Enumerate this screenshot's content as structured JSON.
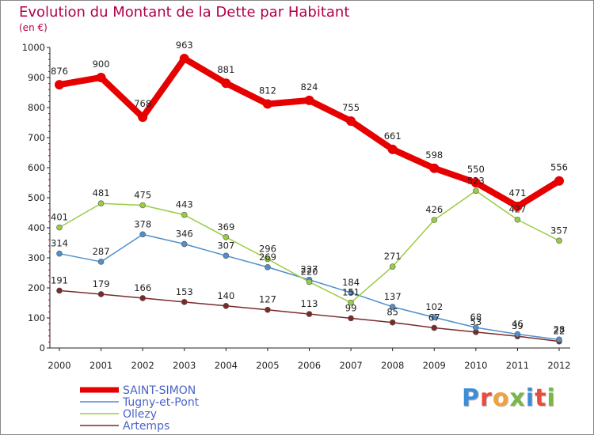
{
  "header": {
    "title": "Evolution du Montant de la Dette par Habitant",
    "subtitle": "(en €)"
  },
  "logo": {
    "text": "Proxiti",
    "letter_colors": [
      "#3d8ed6",
      "#e84c3d",
      "#f0a33a",
      "#7ab648",
      "#3d8ed6",
      "#e84c3d",
      "#7ab648"
    ]
  },
  "chart_data": {
    "type": "line",
    "title": "Evolution du Montant de la Dette par Habitant",
    "subtitle": "(en €)",
    "x": [
      "2000",
      "2001",
      "2002",
      "2003",
      "2004",
      "2005",
      "2006",
      "2007",
      "2008",
      "2009",
      "2010",
      "2011",
      "2012"
    ],
    "ylim": [
      0,
      1000
    ],
    "yticks": [
      0,
      100,
      200,
      300,
      400,
      500,
      600,
      700,
      800,
      900,
      1000
    ],
    "grid": false,
    "legend_position": "bottom-left",
    "series": [
      {
        "name": "SAINT-SIMON",
        "color": "#e60000",
        "values": [
          876,
          900,
          768,
          963,
          881,
          812,
          824,
          755,
          661,
          598,
          550,
          471,
          556
        ],
        "labels": [
          "876",
          "900",
          "768",
          "963",
          "881",
          "812",
          "824",
          "755",
          "661",
          "598",
          "550",
          "471",
          "556"
        ]
      },
      {
        "name": "Tugny-et-Pont",
        "color": "#4f8fcc",
        "values": [
          314,
          287,
          378,
          346,
          307,
          269,
          227,
          184,
          137,
          102,
          68,
          46,
          28
        ],
        "labels": [
          "314",
          "287",
          "378",
          "346",
          "307",
          "269",
          "227",
          "184",
          "137",
          "102",
          "68",
          "46",
          "28"
        ]
      },
      {
        "name": "Ollezy",
        "color": "#99cc44",
        "values": [
          401,
          481,
          475,
          443,
          369,
          296,
          220,
          151,
          271,
          426,
          523,
          427,
          357
        ],
        "labels": [
          "401",
          "481",
          "475",
          "443",
          "369",
          "296",
          "220",
          "151",
          "271",
          "426",
          "523",
          "427",
          "357"
        ]
      },
      {
        "name": "Artemps",
        "color": "#7a2a2a",
        "values": [
          191,
          179,
          166,
          153,
          140,
          127,
          113,
          99,
          85,
          67,
          53,
          39,
          22
        ],
        "labels": [
          "191",
          "179",
          "166",
          "153",
          "140",
          "127",
          "113",
          "99",
          "85",
          "67",
          "53",
          "39",
          "22"
        ]
      }
    ]
  }
}
